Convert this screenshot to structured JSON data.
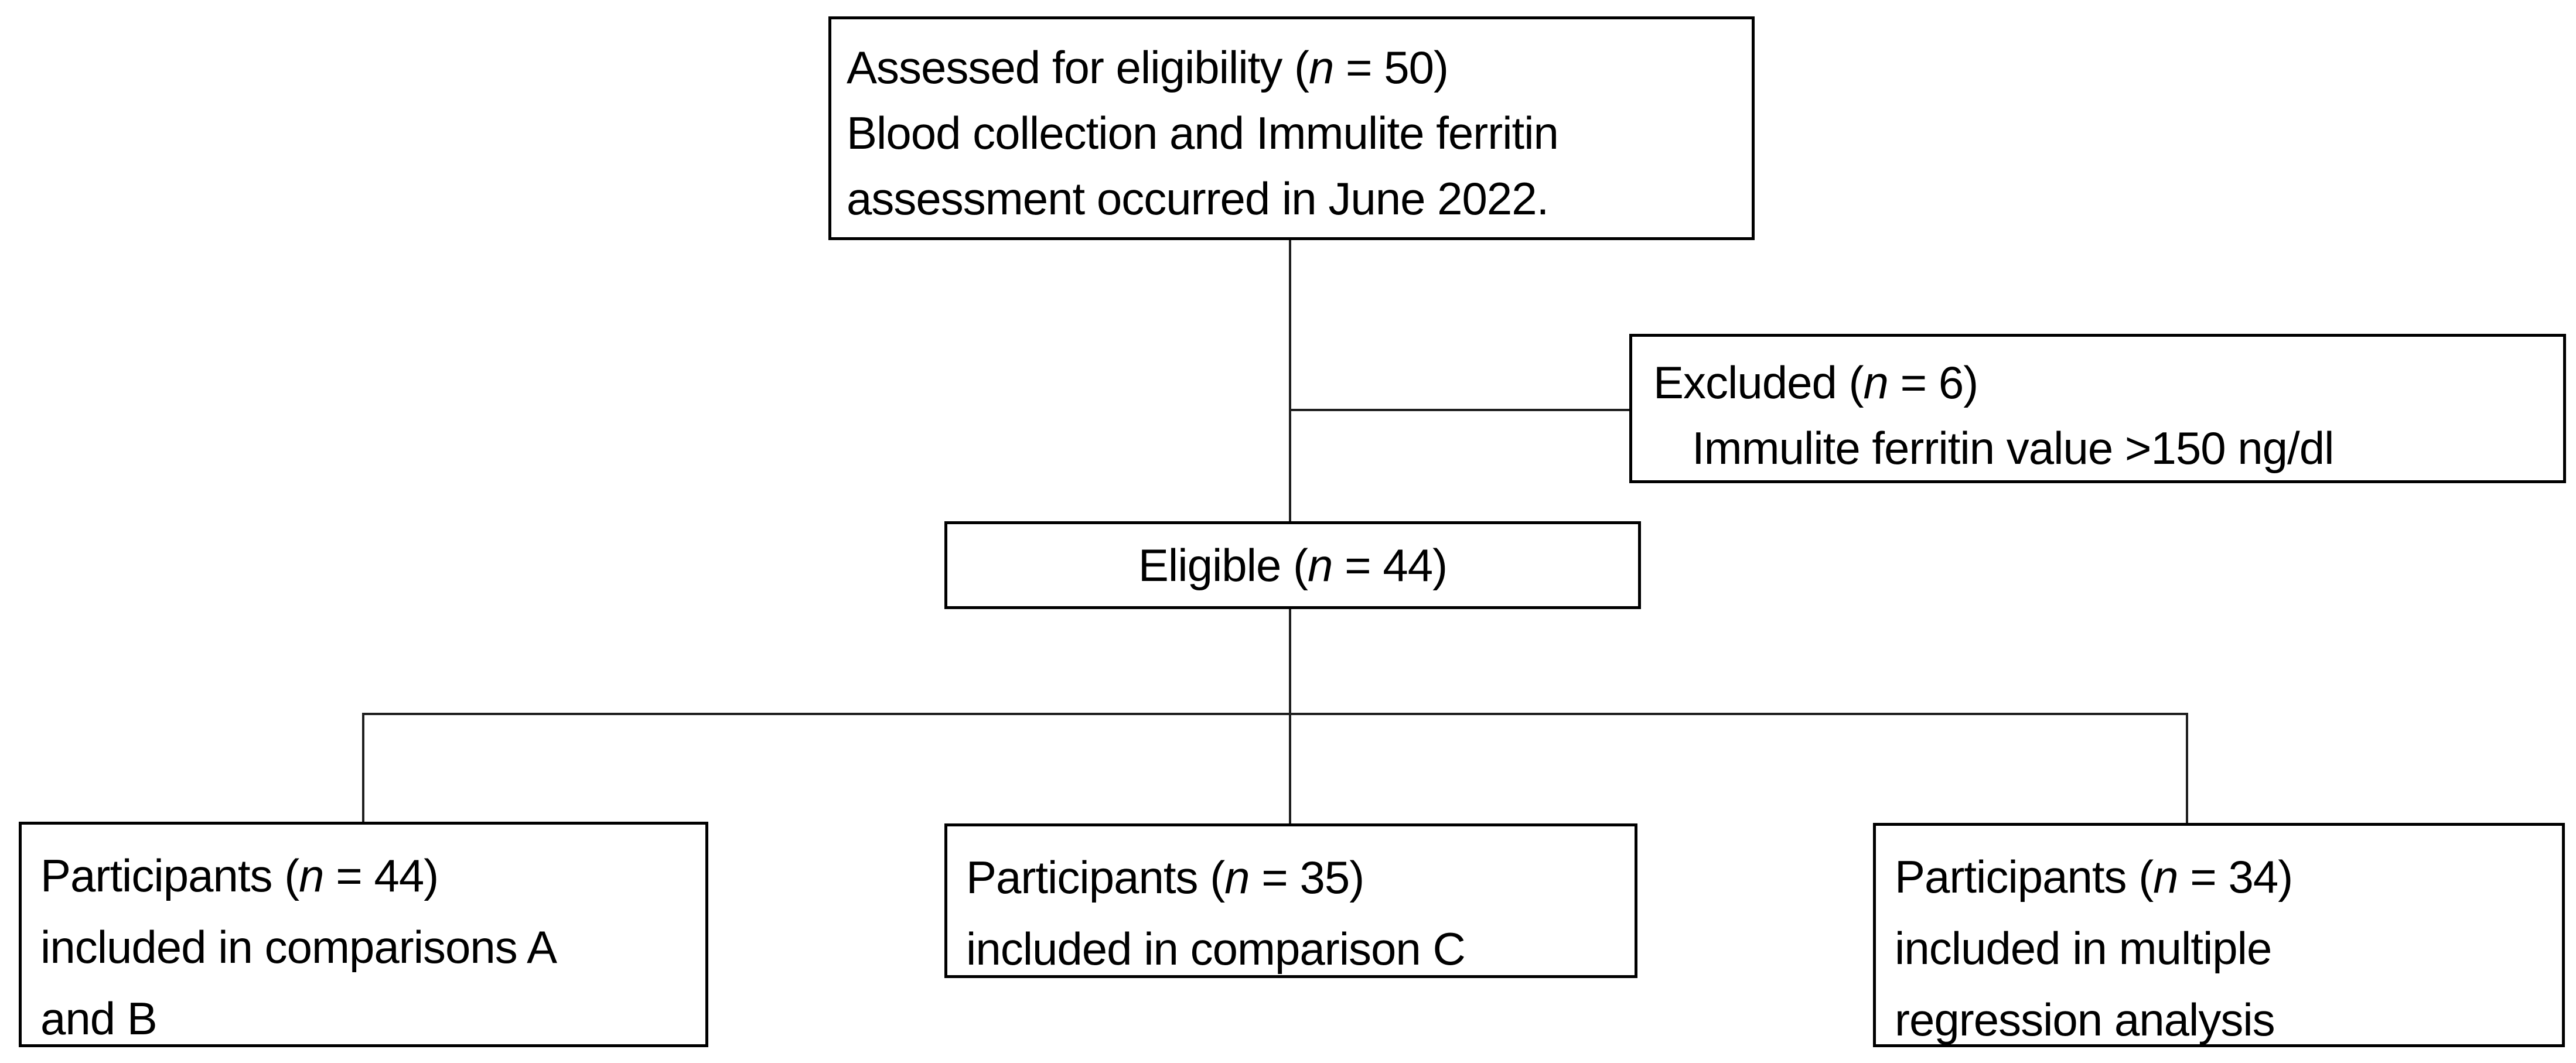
{
  "diagram": {
    "type": "participant-flow-diagram",
    "connectors": [
      {
        "from": "assessed-box",
        "to": "eligible-box",
        "shape": "vertical-line"
      },
      {
        "from": "assessed-eligible-trunk",
        "to": "excluded-box",
        "shape": "horizontal-branch"
      },
      {
        "from": "eligible-box",
        "to": [
          "arm-ab-box",
          "arm-c-box",
          "arm-regression-box"
        ],
        "shape": "split-bar"
      }
    ]
  },
  "colors": {
    "background": "#ffffff",
    "box_border": "#000000",
    "text": "#000000",
    "line": "#1f1f1f"
  },
  "boxes": {
    "assessed": {
      "line1_pre": "Assessed for eligibility (",
      "n": "n",
      "line1_post": " = 50)",
      "line2": "Blood collection and Immulite ferritin",
      "line3": "assessment occurred in June 2022."
    },
    "excluded": {
      "line1_pre": "Excluded (",
      "n": "n",
      "line1_post": " = 6)",
      "line2": "Immulite ferritin value >150 ng/dl"
    },
    "eligible": {
      "line1_pre": "Eligible (",
      "n": "n",
      "line1_post": " = 44)"
    },
    "arm_ab": {
      "line1_pre": "Participants (",
      "n": "n",
      "line1_post": " = 44)",
      "line2": "included in comparisons A",
      "line3": "and B"
    },
    "arm_c": {
      "line1_pre": "Participants (",
      "n": "n",
      "line1_post": " = 35)",
      "line2": "included in comparison C"
    },
    "arm_regression": {
      "line1_pre": "Participants (",
      "n": "n",
      "line1_post": " = 34)",
      "line2": "included in multiple",
      "line3": "regression analysis"
    }
  }
}
